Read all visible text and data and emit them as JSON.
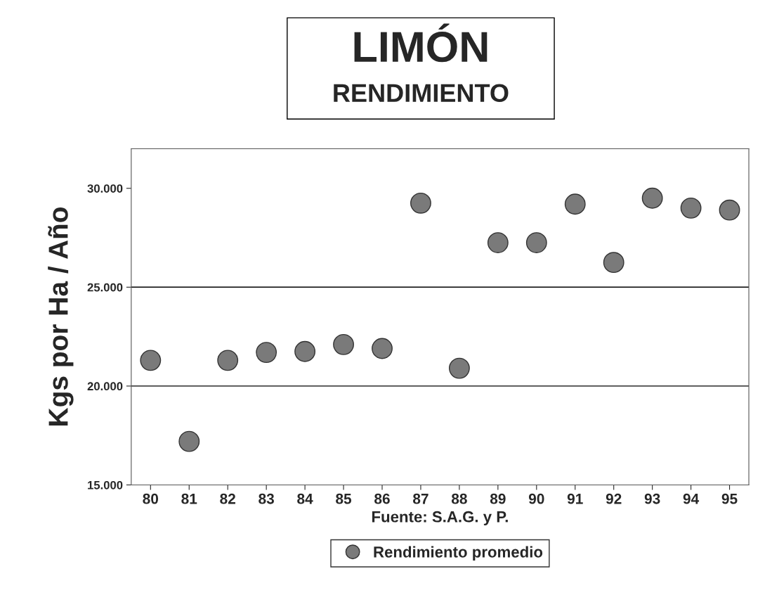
{
  "chart_data": {
    "type": "scatter",
    "title": "LIMÓN",
    "subtitle": "RENDIMIENTO",
    "ylabel": "Kgs por Ha / Año",
    "xlabel": "Fuente: S.A.G. y P.",
    "categories": [
      "80",
      "81",
      "82",
      "83",
      "84",
      "85",
      "86",
      "87",
      "88",
      "89",
      "90",
      "91",
      "92",
      "93",
      "94",
      "95"
    ],
    "series": [
      {
        "name": "Rendimiento promedio",
        "color": "#7a7a7a",
        "values": [
          21300,
          17200,
          21300,
          21700,
          21750,
          22100,
          21900,
          29250,
          20900,
          27250,
          27250,
          29200,
          26250,
          29500,
          29000,
          28900
        ]
      }
    ],
    "ylim": [
      15000,
      32000
    ],
    "yticks": [
      {
        "value": 15000,
        "label": "15.000"
      },
      {
        "value": 20000,
        "label": "20.000"
      },
      {
        "value": 25000,
        "label": "25.000"
      },
      {
        "value": 30000,
        "label": "30.000"
      }
    ],
    "ref_lines": [
      {
        "axis": "y",
        "value": 20000,
        "color": "#000000"
      },
      {
        "axis": "y",
        "value": 25000,
        "color": "#000000"
      }
    ],
    "marker": "circle",
    "legend": "bottom"
  }
}
